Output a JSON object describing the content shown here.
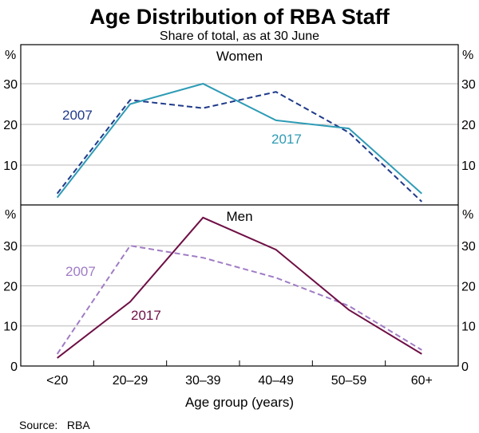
{
  "chart_data": {
    "type": "line",
    "title": "Age Distribution of RBA Staff",
    "subtitle": "Share of total, as at 30 June",
    "xlabel": "Age group (years)",
    "categories": [
      "<20",
      "20–29",
      "30–39",
      "40–49",
      "50–59",
      "60+"
    ],
    "source": "Source:   RBA",
    "panels": [
      {
        "title": "Women",
        "unit": "%",
        "ylim": [
          0,
          38
        ],
        "yticks": [
          10,
          20,
          30
        ],
        "ytick_labels": [
          "10",
          "20",
          "30"
        ],
        "grid": true,
        "series": [
          {
            "name": "2007",
            "label": "2007",
            "values": [
              3,
              26,
              24,
              28,
              18,
              1
            ],
            "color": "#1f3a8a",
            "style": "dashed"
          },
          {
            "name": "2017",
            "label": "2017",
            "values": [
              2,
              25,
              30,
              21,
              19,
              3
            ],
            "color": "#2e9bb5",
            "style": "solid"
          }
        ]
      },
      {
        "title": "Men",
        "unit": "%",
        "ylim": [
          0,
          39
        ],
        "yticks": [
          0,
          10,
          20,
          30
        ],
        "ytick_labels": [
          "0",
          "10",
          "20",
          "30"
        ],
        "grid": true,
        "series": [
          {
            "name": "2007",
            "label": "2007",
            "values": [
              3,
              30,
              27,
              22,
              15,
              4
            ],
            "color": "#a07cc5",
            "style": "dashed"
          },
          {
            "name": "2017",
            "label": "2017",
            "values": [
              2,
              16,
              37,
              29,
              14,
              3
            ],
            "color": "#6e0f45",
            "style": "solid"
          }
        ]
      }
    ]
  }
}
